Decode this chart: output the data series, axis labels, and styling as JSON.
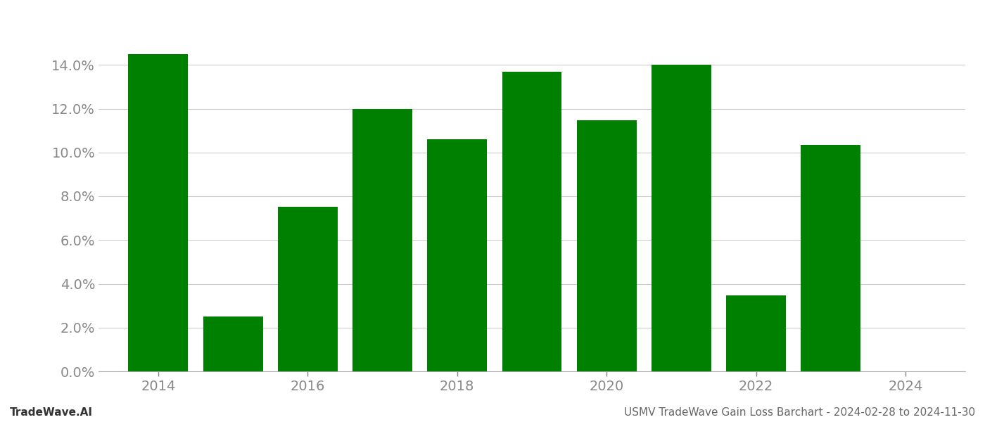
{
  "years": [
    2014,
    2015,
    2016,
    2017,
    2018,
    2019,
    2020,
    2021,
    2022,
    2023
  ],
  "values": [
    0.145,
    0.0252,
    0.0752,
    0.12,
    0.106,
    0.137,
    0.1148,
    0.14,
    0.0348,
    0.1035
  ],
  "bar_color": "#008000",
  "ylim": [
    0,
    0.16
  ],
  "yticks": [
    0.0,
    0.02,
    0.04,
    0.06,
    0.08,
    0.1,
    0.12,
    0.14
  ],
  "xlim": [
    2013.2,
    2024.8
  ],
  "xticks": [
    2014,
    2016,
    2018,
    2020,
    2022,
    2024
  ],
  "background_color": "#ffffff",
  "grid_color": "#cccccc",
  "footer_left": "TradeWave.AI",
  "footer_right": "USMV TradeWave Gain Loss Barchart - 2024-02-28 to 2024-11-30",
  "footer_fontsize": 11,
  "tick_label_fontsize": 14,
  "bar_width": 0.8
}
